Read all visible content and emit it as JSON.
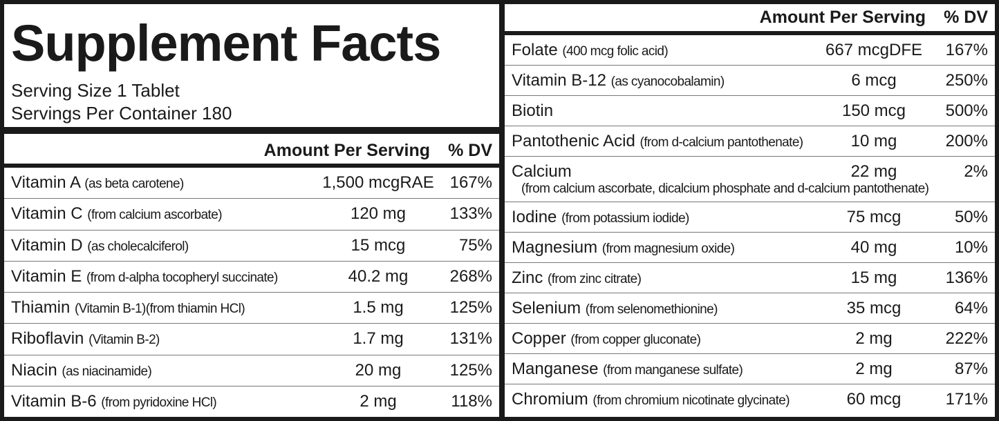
{
  "title": "Supplement Facts",
  "serving_size": "Serving Size 1 Tablet",
  "servings_per_container": "Servings Per Container 180",
  "left_table": {
    "header": {
      "amount": "Amount Per Serving",
      "dv": "% DV"
    },
    "rows": [
      {
        "name": "Vitamin A",
        "source": "(as beta carotene)",
        "amount": "1,500 mcgRAE",
        "dv": "167%"
      },
      {
        "name": "Vitamin C",
        "source": "(from calcium ascorbate)",
        "amount": "120 mg",
        "dv": "133%"
      },
      {
        "name": "Vitamin D",
        "source": "(as cholecalciferol)",
        "amount": "15 mcg",
        "dv": "75%"
      },
      {
        "name": "Vitamin E",
        "source": "(from d-alpha tocopheryl succinate)",
        "amount": "40.2 mg",
        "dv": "268%"
      },
      {
        "name": "Thiamin",
        "source": "(Vitamin B-1)(from thiamin HCl)",
        "amount": "1.5 mg",
        "dv": "125%"
      },
      {
        "name": "Riboflavin",
        "source": "(Vitamin B-2)",
        "amount": "1.7 mg",
        "dv": "131%"
      },
      {
        "name": "Niacin",
        "source": "(as niacinamide)",
        "amount": "20 mg",
        "dv": "125%"
      },
      {
        "name": "Vitamin B-6",
        "source": "(from pyridoxine HCl)",
        "amount": "2 mg",
        "dv": "118%"
      }
    ]
  },
  "right_table": {
    "header": {
      "amount": "Amount Per Serving",
      "dv": "% DV"
    },
    "rows": [
      {
        "name": "Folate",
        "source": "(400 mcg folic acid)",
        "amount": "667 mcgDFE",
        "dv": "167%"
      },
      {
        "name": "Vitamin B-12",
        "source": "(as cyanocobalamin)",
        "amount": "6 mcg",
        "dv": "250%"
      },
      {
        "name": "Biotin",
        "source": "",
        "amount": "150 mcg",
        "dv": "500%"
      },
      {
        "name": "Pantothenic Acid",
        "source": "(from d-calcium pantothenate)",
        "amount": "10 mg",
        "dv": "200%"
      },
      {
        "name": "Calcium",
        "source": "(from calcium ascorbate, dicalcium phosphate and d-calcium pantothenate)",
        "amount": "22 mg",
        "dv": "2%"
      },
      {
        "name": "Iodine",
        "source": "(from potassium iodide)",
        "amount": "75 mcg",
        "dv": "50%"
      },
      {
        "name": "Magnesium",
        "source": "(from magnesium oxide)",
        "amount": "40 mg",
        "dv": "10%"
      },
      {
        "name": "Zinc",
        "source": "(from zinc citrate)",
        "amount": "15 mg",
        "dv": "136%"
      },
      {
        "name": "Selenium",
        "source": "(from selenomethionine)",
        "amount": "35 mcg",
        "dv": "64%"
      },
      {
        "name": "Copper",
        "source": "(from copper gluconate)",
        "amount": "2 mg",
        "dv": "222%"
      },
      {
        "name": "Manganese",
        "source": "(from manganese sulfate)",
        "amount": "2 mg",
        "dv": "87%"
      },
      {
        "name": "Chromium",
        "source": "(from chromium nicotinate glycinate)",
        "amount": "60 mcg",
        "dv": "171%"
      }
    ]
  }
}
